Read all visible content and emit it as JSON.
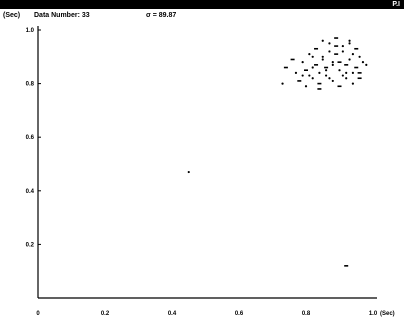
{
  "window": {
    "title": "",
    "system_button": "P.I"
  },
  "header": {
    "y_unit": "(Sec)",
    "data_number_label": "Data Number: 33",
    "sigma_label": "σ = 89.87"
  },
  "chart_data": {
    "type": "scatter",
    "title": "",
    "xlabel": "(Sec)",
    "ylabel": "(Sec)",
    "xlim": [
      0,
      1.0
    ],
    "ylim": [
      0,
      1.0
    ],
    "x_ticks": [
      "0",
      "0.2",
      "0.4",
      "0.6",
      "0.8",
      "1.0"
    ],
    "y_ticks": [
      "0.2",
      "0.4",
      "0.6",
      "0.8",
      "1.0"
    ],
    "grid": false,
    "series": [
      {
        "marker": "dot",
        "x": [
          0.74,
          0.77,
          0.79,
          0.8,
          0.81,
          0.82,
          0.83,
          0.84,
          0.85,
          0.86,
          0.87,
          0.88,
          0.89,
          0.9,
          0.91,
          0.92,
          0.93,
          0.94,
          0.95,
          0.96,
          0.97,
          0.78,
          0.8,
          0.82,
          0.84,
          0.86,
          0.88,
          0.9,
          0.92,
          0.94,
          0.96,
          0.98,
          0.81,
          0.83,
          0.85,
          0.87,
          0.89,
          0.91,
          0.93,
          0.95,
          0.79,
          0.82,
          0.84,
          0.86,
          0.88,
          0.9,
          0.92,
          0.94,
          0.96,
          0.85,
          0.87,
          0.89,
          0.91,
          0.93,
          0.76,
          0.73,
          0.45,
          0.92
        ],
        "y": [
          0.86,
          0.84,
          0.88,
          0.85,
          0.83,
          0.9,
          0.87,
          0.84,
          0.89,
          0.86,
          0.82,
          0.88,
          0.91,
          0.85,
          0.83,
          0.87,
          0.89,
          0.84,
          0.86,
          0.9,
          0.88,
          0.81,
          0.79,
          0.82,
          0.8,
          0.83,
          0.81,
          0.79,
          0.82,
          0.8,
          0.84,
          0.87,
          0.91,
          0.93,
          0.9,
          0.92,
          0.94,
          0.92,
          0.95,
          0.93,
          0.83,
          0.86,
          0.78,
          0.85,
          0.87,
          0.88,
          0.84,
          0.91,
          0.82,
          0.96,
          0.95,
          0.97,
          0.94,
          0.96,
          0.89,
          0.8,
          0.47,
          0.12
        ]
      }
    ]
  }
}
